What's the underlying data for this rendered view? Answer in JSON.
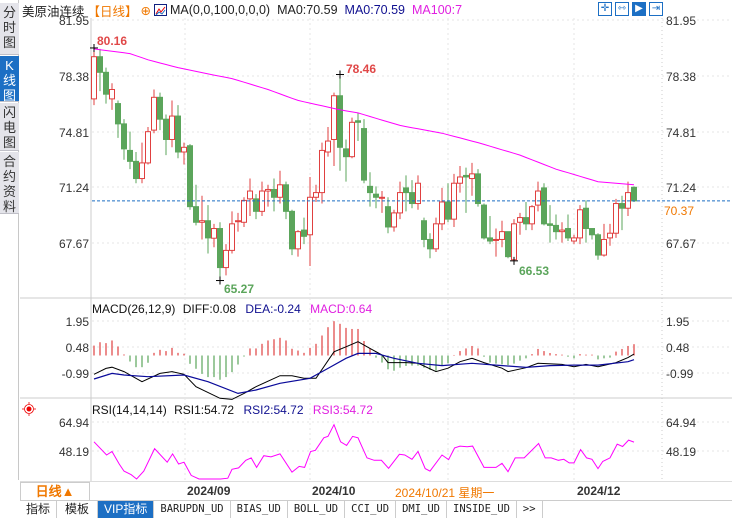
{
  "side_tabs": [
    {
      "label": "分时图",
      "active": false
    },
    {
      "label": "K线图",
      "active": true
    },
    {
      "label": "闪电图",
      "active": false
    },
    {
      "label": "合约资料",
      "active": false
    }
  ],
  "title": {
    "symbol": "美原油连续",
    "period": "【日线】",
    "add_icon": "circle-plus-icon",
    "ma_params": "MA(0,0,100,0,0,0)",
    "ma0_a": "MA0:70.59",
    "ma0_b": "MA0:70.59",
    "ma100": "MA100:7"
  },
  "toolbar": [
    {
      "icon": "crosshair-icon"
    },
    {
      "icon": "range-select-icon"
    },
    {
      "icon": "play-cursor-icon",
      "active": true
    },
    {
      "icon": "jump-end-icon"
    }
  ],
  "colors": {
    "up": "#e04040",
    "down": "#5ba55b",
    "ma100": "#ff00ff",
    "diff": "#000000",
    "dea": "#0a0a9a",
    "rsi": "#ff00ff",
    "current_line": "#1c6fc4",
    "current_label": "#f07800"
  },
  "main_axis": {
    "labels": [
      "81.95",
      "78.38",
      "74.81",
      "71.24",
      "67.67"
    ],
    "current_price": "70.37"
  },
  "annotations": {
    "high1": "80.16",
    "high2": "78.46",
    "low1": "65.27",
    "low2": "66.53"
  },
  "macd": {
    "header": "MACD(26,12,9)",
    "diff": "DIFF:0.08",
    "dea": "DEA:-0.24",
    "macd": "MACD:0.64",
    "labels": [
      "1.95",
      "0.48",
      "-0.99"
    ]
  },
  "rsi": {
    "header": "RSI(14,14,14)",
    "rsi1": "RSI1:54.72",
    "rsi2": "RSI2:54.72",
    "rsi3": "RSI3:54.72",
    "labels": [
      "64.94",
      "48.19"
    ]
  },
  "xaxis": {
    "period": "日线▲",
    "labels": [
      "2024/09",
      "2024/10",
      "2024/12"
    ],
    "cursor_date": "2024/10/21 星期一"
  },
  "bottom_tabs": [
    "指标",
    "模板",
    "VIP指标",
    "BARUPDN_UD",
    "BIAS_UD",
    "BOLL_UD",
    "CCI_UD",
    "DMI_UD",
    "INSIDE_UD",
    ">>"
  ],
  "chart_data": {
    "type": "candlestick",
    "ylim": [
      65.0,
      81.95
    ],
    "ohlc": [
      [
        76.9,
        80.16,
        76.5,
        79.6
      ],
      [
        79.6,
        80.1,
        77.4,
        78.6
      ],
      [
        78.6,
        78.9,
        76.6,
        77.2
      ],
      [
        76.9,
        77.9,
        76.2,
        77.5
      ],
      [
        76.6,
        76.8,
        74.4,
        75.3
      ],
      [
        75.3,
        75.6,
        73.0,
        73.7
      ],
      [
        73.6,
        74.8,
        72.4,
        72.9
      ],
      [
        72.9,
        73.5,
        71.5,
        71.8
      ],
      [
        71.8,
        74.1,
        71.5,
        72.8
      ],
      [
        72.8,
        75.1,
        72.7,
        74.8
      ],
      [
        74.9,
        77.5,
        74.7,
        77.0
      ],
      [
        77.0,
        77.3,
        74.9,
        75.6
      ],
      [
        75.6,
        75.9,
        73.3,
        74.3
      ],
      [
        74.3,
        76.8,
        73.8,
        75.8
      ],
      [
        75.8,
        76.5,
        73.1,
        73.5
      ],
      [
        73.5,
        74.1,
        72.7,
        73.8
      ],
      [
        73.9,
        74.0,
        69.8,
        70.0
      ],
      [
        70.0,
        71.4,
        68.8,
        69.0
      ],
      [
        69.0,
        70.7,
        67.9,
        69.1
      ],
      [
        69.1,
        70.1,
        67.0,
        68.0
      ],
      [
        67.98,
        68.9,
        67.4,
        68.6
      ],
      [
        68.6,
        69.0,
        65.27,
        66.1
      ],
      [
        66.1,
        67.6,
        65.6,
        67.2
      ],
      [
        67.2,
        69.7,
        67.0,
        68.9
      ],
      [
        69.05,
        69.6,
        68.4,
        69.1
      ],
      [
        69.0,
        70.6,
        68.7,
        70.4
      ],
      [
        70.5,
        71.8,
        69.4,
        71.0
      ],
      [
        70.5,
        70.8,
        69.2,
        69.7
      ],
      [
        69.7,
        71.6,
        69.4,
        71.0
      ],
      [
        71.0,
        71.4,
        70.0,
        71.1
      ],
      [
        71.1,
        71.8,
        69.7,
        70.6
      ],
      [
        70.6,
        72.3,
        70.2,
        71.4
      ],
      [
        71.4,
        71.6,
        69.2,
        69.7
      ],
      [
        69.7,
        69.8,
        66.9,
        67.3
      ],
      [
        67.3,
        68.5,
        66.8,
        68.4
      ],
      [
        68.5,
        69.3,
        67.6,
        68.1
      ],
      [
        68.2,
        71.9,
        66.2,
        70.6
      ],
      [
        70.6,
        71.4,
        70.3,
        70.9
      ],
      [
        70.9,
        74.1,
        70.2,
        73.6
      ],
      [
        73.5,
        75.1,
        73.2,
        74.2
      ],
      [
        74.3,
        77.3,
        72.6,
        77.1
      ],
      [
        77.1,
        78.46,
        72.3,
        73.8
      ],
      [
        73.7,
        74.3,
        71.6,
        73.2
      ],
      [
        73.2,
        75.7,
        73.1,
        75.4
      ],
      [
        75.5,
        76.0,
        74.2,
        75.4
      ],
      [
        75.0,
        75.6,
        71.5,
        71.7
      ],
      [
        71.3,
        72.2,
        70.0,
        70.9
      ],
      [
        70.8,
        71.3,
        69.9,
        70.6
      ],
      [
        70.55,
        71.0,
        69.6,
        70.6
      ],
      [
        70.0,
        70.6,
        68.3,
        68.7
      ],
      [
        68.7,
        69.8,
        68.4,
        69.6
      ],
      [
        69.6,
        71.6,
        69.2,
        70.9
      ],
      [
        71.2,
        72.0,
        69.7,
        70.9
      ],
      [
        70.9,
        71.7,
        69.9,
        70.2
      ],
      [
        70.2,
        72.0,
        69.8,
        71.5
      ],
      [
        69.1,
        69.3,
        67.4,
        67.9
      ],
      [
        67.9,
        68.3,
        66.7,
        67.3
      ],
      [
        67.3,
        69.3,
        67.1,
        68.9
      ],
      [
        68.9,
        71.2,
        68.5,
        70.3
      ],
      [
        70.3,
        71.5,
        69.0,
        69.2
      ],
      [
        69.2,
        72.1,
        68.7,
        71.5
      ],
      [
        71.5,
        72.6,
        70.9,
        71.9
      ],
      [
        72.0,
        72.5,
        69.6,
        71.9
      ],
      [
        71.8,
        72.8,
        70.7,
        72.1
      ],
      [
        72.1,
        72.4,
        70.0,
        70.2
      ],
      [
        70.1,
        70.2,
        67.9,
        68.0
      ],
      [
        68.0,
        69.4,
        67.6,
        67.8
      ],
      [
        67.85,
        68.6,
        66.8,
        67.9
      ],
      [
        67.9,
        69.1,
        67.4,
        68.4
      ],
      [
        68.4,
        68.4,
        66.7,
        66.8
      ],
      [
        66.6,
        69.2,
        66.53,
        68.9
      ],
      [
        69.0,
        69.6,
        68.2,
        69.3
      ],
      [
        69.3,
        70.3,
        68.5,
        68.9
      ],
      [
        68.9,
        70.1,
        68.5,
        70.0
      ],
      [
        70.1,
        71.6,
        69.7,
        71.0
      ],
      [
        71.2,
        71.5,
        68.8,
        68.9
      ],
      [
        68.9,
        70.1,
        67.7,
        68.8
      ],
      [
        68.8,
        69.5,
        67.9,
        68.4
      ],
      [
        68.4,
        69.0,
        67.7,
        68.5
      ],
      [
        68.6,
        69.5,
        67.8,
        68.0
      ],
      [
        67.8,
        68.2,
        67.6,
        68.0
      ],
      [
        68.0,
        70.1,
        67.6,
        69.8
      ],
      [
        69.9,
        70.4,
        67.7,
        68.6
      ],
      [
        68.6,
        68.6,
        67.9,
        68.2
      ],
      [
        68.2,
        68.3,
        66.6,
        66.9
      ],
      [
        66.9,
        68.9,
        66.8,
        67.9
      ],
      [
        68.0,
        68.9,
        67.5,
        68.3
      ],
      [
        68.3,
        70.5,
        68.0,
        70.2
      ],
      [
        70.2,
        70.7,
        68.5,
        69.9
      ],
      [
        69.9,
        71.6,
        69.4,
        70.9
      ],
      [
        71.24,
        71.3,
        70.3,
        70.37
      ]
    ],
    "ma100_knots": [
      [
        0,
        80.1
      ],
      [
        6,
        79.8
      ],
      [
        9,
        79.4
      ],
      [
        14,
        78.9
      ],
      [
        19,
        78.5
      ],
      [
        23,
        78.2
      ],
      [
        29,
        77.5
      ],
      [
        34,
        76.8
      ],
      [
        41,
        76.2
      ],
      [
        44,
        76.0
      ],
      [
        51,
        75.2
      ],
      [
        58,
        74.7
      ],
      [
        64,
        74.1
      ],
      [
        71,
        73.3
      ],
      [
        77,
        72.4
      ],
      [
        84,
        71.6
      ],
      [
        90,
        71.4
      ]
    ],
    "macd_hist": [
      0.56,
      0.75,
      0.7,
      0.85,
      0.51,
      0.06,
      -0.34,
      -0.66,
      -0.66,
      -0.41,
      0.15,
      0.32,
      0.25,
      0.43,
      0.15,
      0.1,
      -0.47,
      -0.75,
      -1.04,
      -1.22,
      -1.22,
      -1.37,
      -1.22,
      -0.94,
      -0.51,
      -0.06,
      0.4,
      0.4,
      0.66,
      0.85,
      0.92,
      1.0,
      0.85,
      0.38,
      0.28,
      0.15,
      0.43,
      0.66,
      1.13,
      1.6,
      1.94,
      1.79,
      1.56,
      1.5,
      1.5,
      0.82,
      0.4,
      -0.12,
      -0.4,
      -0.78,
      -0.86,
      -0.69,
      -0.59,
      -0.57,
      -0.57,
      -0.69,
      -0.82,
      -0.86,
      -0.59,
      -0.44,
      0.03,
      0.25,
      0.4,
      0.54,
      0.4,
      -0.07,
      -0.4,
      -0.46,
      -0.5,
      -0.54,
      -0.46,
      -0.29,
      -0.16,
      0.08,
      0.37,
      0.25,
      0.14,
      0.08,
      0.05,
      -0.07,
      -0.16,
      0.08,
      0.05,
      0.05,
      -0.22,
      -0.16,
      -0.12,
      0.22,
      0.37,
      0.54,
      0.64
    ],
    "diff_knots": [
      [
        0,
        -1.06
      ],
      [
        2,
        -0.73
      ],
      [
        3,
        -0.66
      ],
      [
        5,
        -0.91
      ],
      [
        8,
        -1.48
      ],
      [
        11,
        -1.01
      ],
      [
        13,
        -0.91
      ],
      [
        15,
        -1.06
      ],
      [
        17,
        -1.76
      ],
      [
        21,
        -2.42
      ],
      [
        23,
        -2.48
      ],
      [
        25,
        -2.14
      ],
      [
        27,
        -1.76
      ],
      [
        31,
        -1.14
      ],
      [
        33,
        -1.14
      ],
      [
        35,
        -1.29
      ],
      [
        37,
        -1.29
      ],
      [
        40,
        0.21
      ],
      [
        42,
        0.49
      ],
      [
        44,
        0.78
      ],
      [
        46,
        0.4
      ],
      [
        48,
        0.03
      ],
      [
        49,
        -0.4
      ],
      [
        52,
        -0.4
      ],
      [
        54,
        -0.44
      ],
      [
        57,
        -0.91
      ],
      [
        59,
        -0.72
      ],
      [
        61,
        -0.35
      ],
      [
        63,
        -0.16
      ],
      [
        65,
        -0.4
      ],
      [
        68,
        -0.72
      ],
      [
        69,
        -0.91
      ],
      [
        72,
        -0.69
      ],
      [
        74,
        -0.44
      ],
      [
        78,
        -0.5
      ],
      [
        80,
        -0.63
      ],
      [
        82,
        -0.5
      ],
      [
        84,
        -0.63
      ],
      [
        87,
        -0.4
      ],
      [
        89,
        -0.12
      ],
      [
        90,
        0.08
      ]
    ],
    "dea_knots": [
      [
        0,
        -1.33
      ],
      [
        3,
        -1.01
      ],
      [
        5,
        -1.1
      ],
      [
        9,
        -1.2
      ],
      [
        15,
        -1.1
      ],
      [
        19,
        -1.48
      ],
      [
        24,
        -2.14
      ],
      [
        27,
        -1.95
      ],
      [
        31,
        -1.57
      ],
      [
        36,
        -1.29
      ],
      [
        39,
        -0.73
      ],
      [
        42,
        -0.16
      ],
      [
        44,
        0.12
      ],
      [
        47,
        0.12
      ],
      [
        50,
        -0.16
      ],
      [
        54,
        -0.44
      ],
      [
        58,
        -0.57
      ],
      [
        63,
        -0.44
      ],
      [
        67,
        -0.54
      ],
      [
        72,
        -0.67
      ],
      [
        76,
        -0.57
      ],
      [
        80,
        -0.54
      ],
      [
        84,
        -0.54
      ],
      [
        89,
        -0.35
      ],
      [
        90,
        -0.24
      ]
    ],
    "rsi_knots": [
      [
        0,
        53.5
      ],
      [
        2.1,
        45.9
      ],
      [
        3,
        47.9
      ],
      [
        4.2,
        40.7
      ],
      [
        5,
        36.6
      ],
      [
        6.2,
        34.5
      ],
      [
        7.1,
        31.8
      ],
      [
        8.3,
        36.6
      ],
      [
        10.1,
        49.6
      ],
      [
        12.2,
        41.7
      ],
      [
        13.1,
        46.5
      ],
      [
        14.1,
        40.7
      ],
      [
        15,
        41.7
      ],
      [
        16.2,
        34.1
      ],
      [
        17.5,
        31.8
      ],
      [
        19,
        29.8
      ],
      [
        20,
        31.4
      ],
      [
        21.1,
        28.3
      ],
      [
        22.3,
        32.5
      ],
      [
        23,
        37.6
      ],
      [
        24.1,
        38.4
      ],
      [
        25.3,
        42.8
      ],
      [
        26.2,
        44.2
      ],
      [
        27.1,
        38.7
      ],
      [
        28.3,
        45.5
      ],
      [
        29.5,
        44.8
      ],
      [
        31,
        46.5
      ],
      [
        33,
        36.0
      ],
      [
        34.2,
        39.3
      ],
      [
        35.1,
        38.7
      ],
      [
        36.1,
        47.9
      ],
      [
        36.9,
        48.6
      ],
      [
        38.3,
        55.8
      ],
      [
        39,
        56.6
      ],
      [
        40,
        63.4
      ],
      [
        41.1,
        53.5
      ],
      [
        42.1,
        51.4
      ],
      [
        43.1,
        56.6
      ],
      [
        44,
        55.8
      ],
      [
        45.5,
        44.2
      ],
      [
        46.7,
        42.8
      ],
      [
        47.9,
        42.8
      ],
      [
        49.1,
        38.2
      ],
      [
        50.9,
        46.3
      ],
      [
        51.8,
        45.9
      ],
      [
        53,
        43.4
      ],
      [
        54,
        47.9
      ],
      [
        55.2,
        38.0
      ],
      [
        56,
        36.6
      ],
      [
        58,
        45.9
      ],
      [
        59.1,
        43.2
      ],
      [
        60.1,
        50.0
      ],
      [
        61,
        51.0
      ],
      [
        62.2,
        50.6
      ],
      [
        63.1,
        51.0
      ],
      [
        65,
        38.7
      ],
      [
        67,
        38.7
      ],
      [
        68,
        41.1
      ],
      [
        69,
        36.2
      ],
      [
        70.2,
        44.2
      ],
      [
        71.7,
        44.2
      ],
      [
        74.1,
        52.5
      ],
      [
        75.2,
        44.2
      ],
      [
        76.2,
        44.2
      ],
      [
        77.4,
        42.8
      ],
      [
        78.3,
        43.4
      ],
      [
        79.2,
        41.3
      ],
      [
        80,
        41.3
      ],
      [
        81.1,
        49.0
      ],
      [
        82.1,
        44.2
      ],
      [
        83,
        43.4
      ],
      [
        84,
        38.0
      ],
      [
        84.8,
        42.2
      ],
      [
        86,
        44.2
      ],
      [
        87.2,
        52.1
      ],
      [
        88.1,
        50.8
      ],
      [
        89.1,
        54.5
      ],
      [
        90,
        53.3
      ]
    ]
  }
}
